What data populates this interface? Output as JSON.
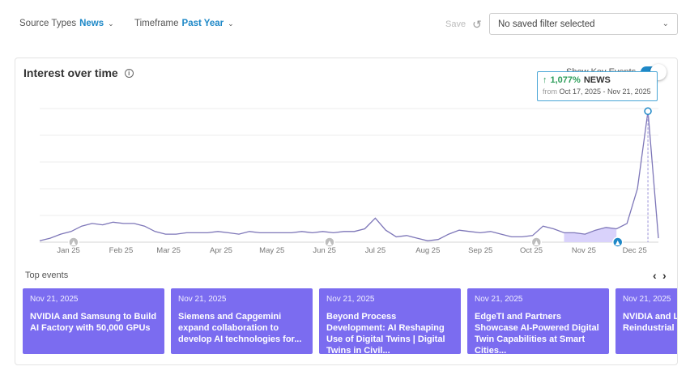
{
  "filters": {
    "source": {
      "label": "Source Types",
      "value": "News"
    },
    "timeframe": {
      "label": "Timeframe",
      "value": "Past Year"
    }
  },
  "save_label": "Save",
  "saved_filter": {
    "value": "No saved filter selected"
  },
  "card": {
    "title": "Interest over time",
    "key_events_label": "Show Key Events"
  },
  "tooltip": {
    "arrow": "↑",
    "percent": "1,077%",
    "label": "NEWS",
    "from_label": "from",
    "range": "Oct 17, 2025 - Nov 21, 2025"
  },
  "chart_data": {
    "type": "area",
    "x_ticks": [
      "Jan 25",
      "Feb 25",
      "Mar 25",
      "Apr 25",
      "May 25",
      "Jun 25",
      "Jul 25",
      "Aug 25",
      "Sep 25",
      "Oct 25",
      "Nov 25",
      "Dec 25"
    ],
    "x_start": "Dec 15, 2024",
    "x_end": "Dec 15, 2025",
    "ylim": [
      0,
      100
    ],
    "grid": true,
    "highlight": {
      "from": "Oct 17, 2025",
      "to": "Nov 21, 2025"
    },
    "series": [
      {
        "values": [
          1,
          3,
          6,
          8,
          12,
          14,
          13,
          15,
          14,
          14,
          12,
          8,
          6,
          6,
          7,
          7,
          7,
          8,
          7,
          6,
          8,
          7,
          7,
          7,
          7,
          8,
          7,
          8,
          7,
          8,
          8,
          10,
          18,
          9,
          4,
          5,
          3,
          1,
          2,
          6,
          9,
          8,
          7,
          8,
          6,
          4,
          4,
          5,
          12,
          10,
          7,
          7,
          6,
          9,
          11,
          10,
          14,
          40,
          98,
          3
        ]
      }
    ],
    "event_markers": [
      "Jan 25",
      "Jun 25",
      "Oct 25",
      "Nov 25"
    ]
  },
  "events_section": {
    "title": "Top events",
    "prev": "‹",
    "next": "›"
  },
  "events": [
    {
      "date": "Nov 21, 2025",
      "headline": "NVIDIA and Samsung to Build AI Factory with 50,000 GPUs"
    },
    {
      "date": "Nov 21, 2025",
      "headline": "Siemens and Capgemini expand collaboration to develop AI technologies for..."
    },
    {
      "date": "Nov 21, 2025",
      "headline": "Beyond Process Development: AI Reshaping Use of Digital Twins | Digital Twins in Civil..."
    },
    {
      "date": "Nov 21, 2025",
      "headline": "EdgeTI and Partners Showcase AI-Powered Digital Twin Capabilities at Smart Cities..."
    },
    {
      "date": "Nov 21, 2025",
      "headline": "NVIDIA and Leaders Dri Reindustrial"
    }
  ]
}
